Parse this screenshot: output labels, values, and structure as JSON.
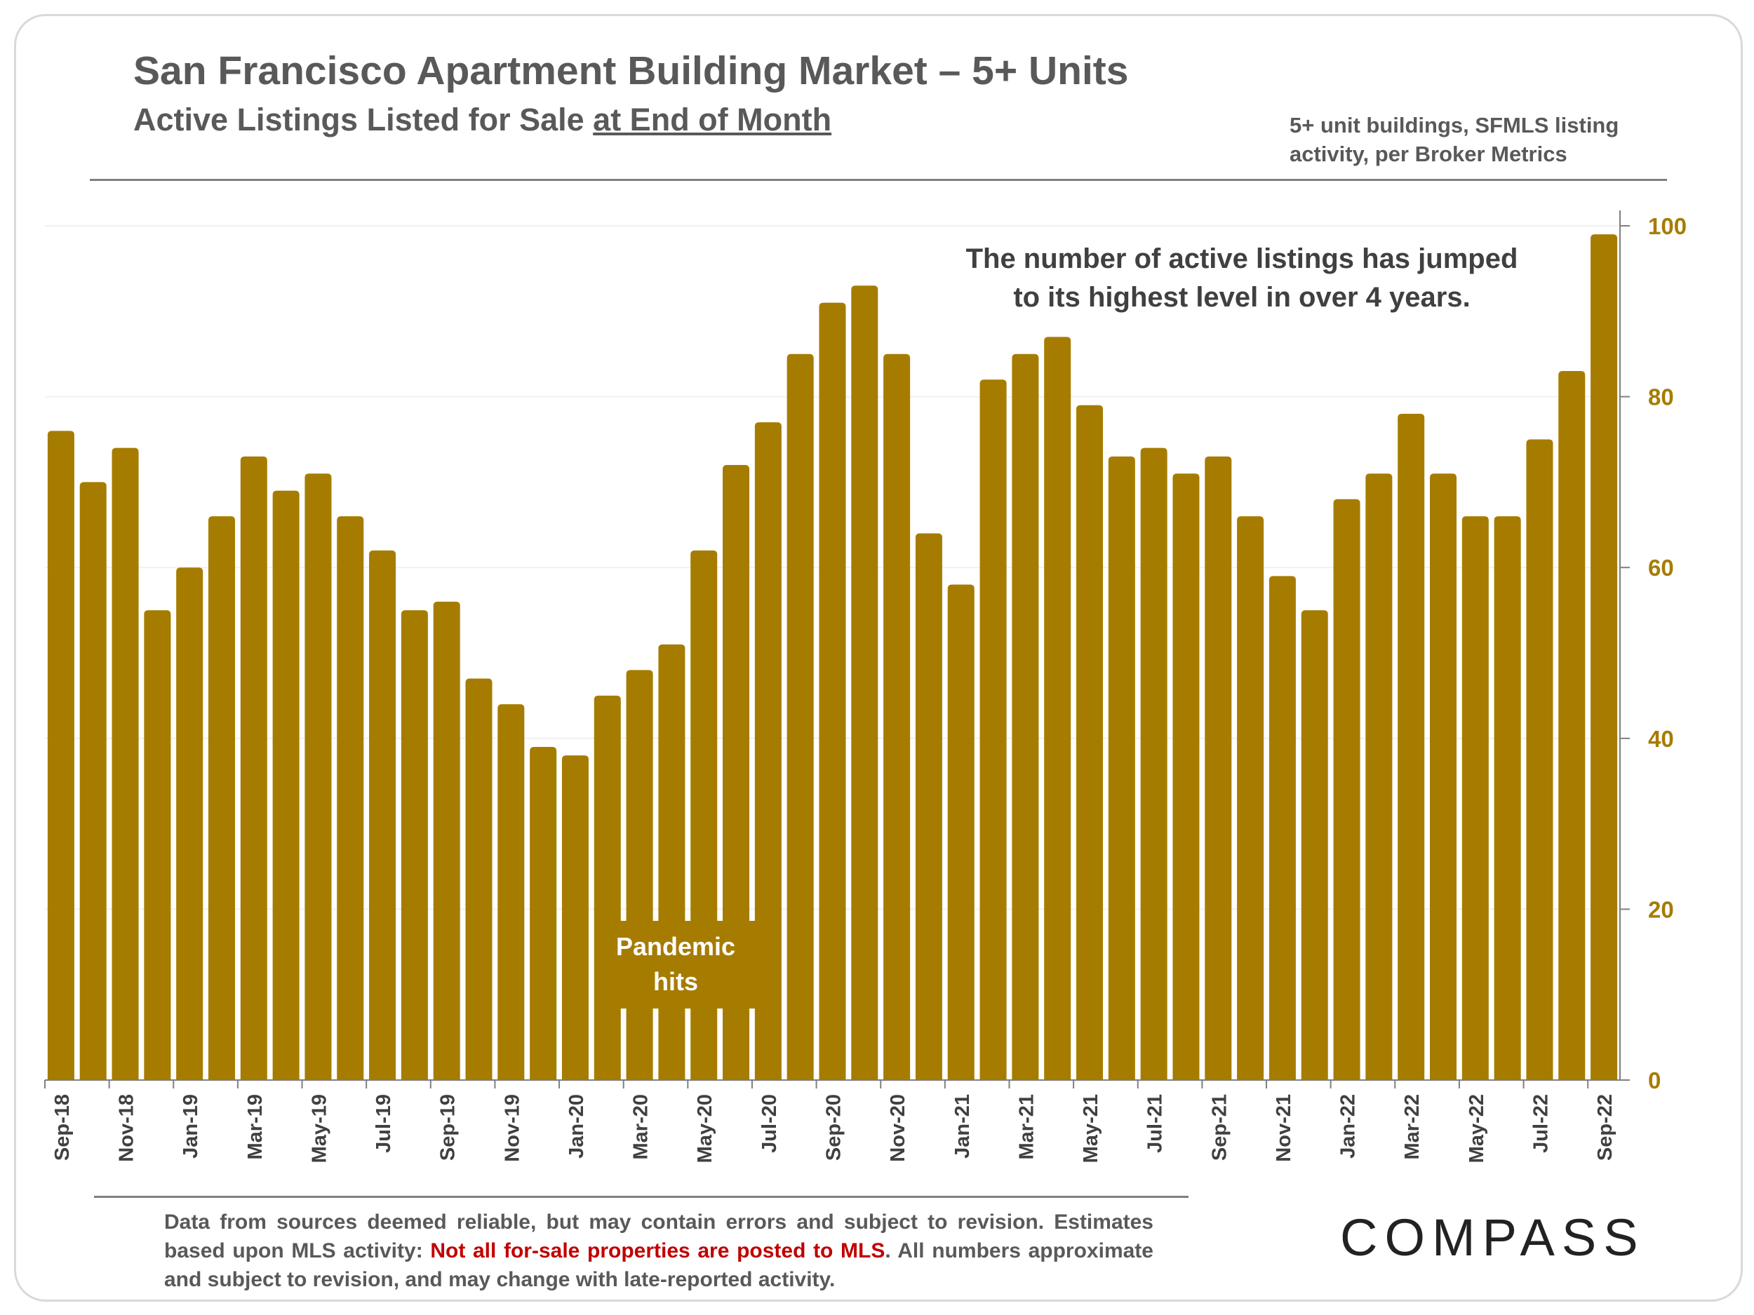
{
  "header": {
    "title": "San Francisco Apartment Building Market – 5+ Units",
    "subtitle_prefix": "Active Listings Listed for Sale ",
    "subtitle_underlined": "at End of Month",
    "source_note_line1": "5+ unit buildings, SFMLS listing",
    "source_note_line2": "activity, per Broker Metrics"
  },
  "annotations": {
    "main_line1": "The number of active listings has jumped",
    "main_line2": "to its highest level in over 4 years.",
    "pandemic_line1": "Pandemic",
    "pandemic_line2": "hits"
  },
  "footer": {
    "text1": "Data from sources deemed reliable, but may contain errors and subject to revision. Estimates based upon MLS activity: ",
    "text_red": "Not all for-sale properties are posted to MLS",
    "text2": ". All numbers approximate and subject to revision, and may change with late-reported activity.",
    "logo": "COMPASS"
  },
  "colors": {
    "bar": "#a67c00",
    "axis_label": "#a67c00",
    "red_note": "#c00000"
  },
  "chart_data": {
    "type": "bar",
    "title": "San Francisco Apartment Building Market – 5+ Units",
    "xlabel": "",
    "ylabel": "",
    "ylim": [
      0,
      100
    ],
    "yticks": [
      0,
      20,
      40,
      60,
      80,
      100
    ],
    "y_axis_side": "right",
    "grid": true,
    "categories": [
      "Sep-18",
      "Oct-18",
      "Nov-18",
      "Dec-18",
      "Jan-19",
      "Feb-19",
      "Mar-19",
      "Apr-19",
      "May-19",
      "Jun-19",
      "Jul-19",
      "Aug-19",
      "Sep-19",
      "Oct-19",
      "Nov-19",
      "Dec-19",
      "Jan-20",
      "Feb-20",
      "Mar-20",
      "Apr-20",
      "May-20",
      "Jun-20",
      "Jul-20",
      "Aug-20",
      "Sep-20",
      "Oct-20",
      "Nov-20",
      "Dec-20",
      "Jan-21",
      "Feb-21",
      "Mar-21",
      "Apr-21",
      "May-21",
      "Jun-21",
      "Jul-21",
      "Aug-21",
      "Sep-21",
      "Oct-21",
      "Nov-21",
      "Dec-21",
      "Jan-22",
      "Feb-22",
      "Mar-22",
      "Apr-22",
      "May-22",
      "Jun-22",
      "Jul-22",
      "Aug-22",
      "Sep-22"
    ],
    "values": [
      76,
      70,
      74,
      55,
      60,
      66,
      73,
      69,
      71,
      66,
      62,
      55,
      56,
      47,
      44,
      39,
      38,
      45,
      48,
      51,
      62,
      72,
      77,
      85,
      91,
      93,
      85,
      64,
      58,
      82,
      85,
      87,
      79,
      73,
      74,
      71,
      73,
      66,
      59,
      55,
      68,
      71,
      78,
      71,
      66,
      66,
      75,
      83,
      99
    ]
  }
}
